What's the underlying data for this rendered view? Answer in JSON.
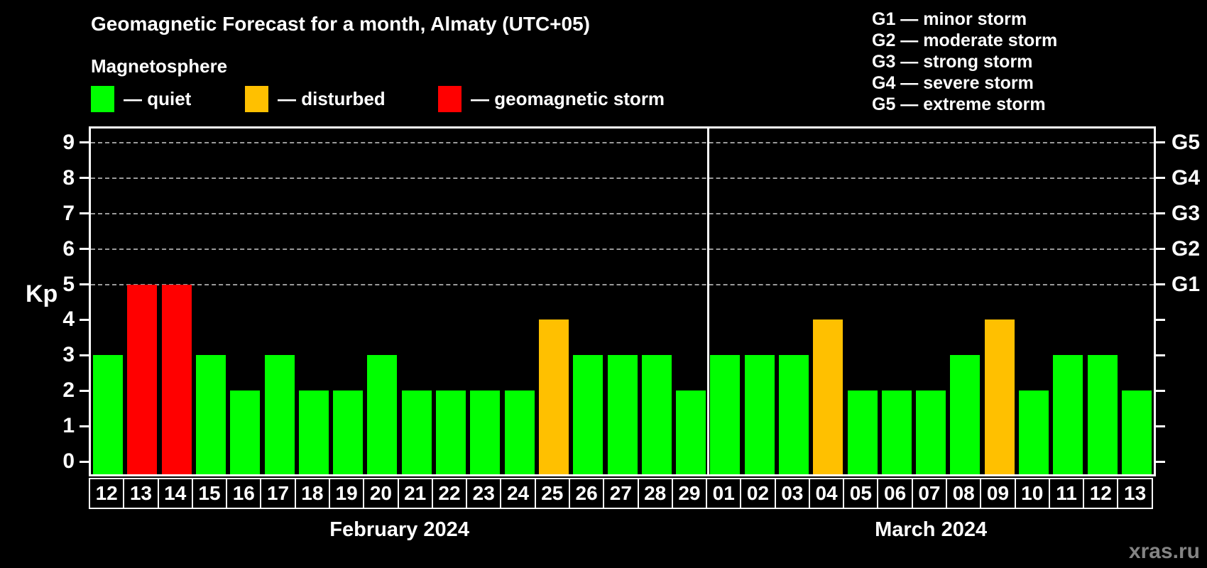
{
  "title": "Geomagnetic Forecast for a month, Almaty (UTC+05)",
  "subtitle": "Magnetosphere",
  "legend": {
    "items": [
      {
        "key": "quiet",
        "label": "— quiet",
        "color": "#00ff00"
      },
      {
        "key": "disturbed",
        "label": "— disturbed",
        "color": "#ffc000"
      },
      {
        "key": "storm",
        "label": "— geomagnetic storm",
        "color": "#ff0000"
      }
    ]
  },
  "g_scale_legend": [
    "G1 — minor storm",
    "G2 — moderate storm",
    "G3 — strong storm",
    "G4 — severe storm",
    "G5 — extreme storm"
  ],
  "watermark": "xras.ru",
  "chart_data": {
    "type": "bar",
    "ylabel": "Kp",
    "ylim": [
      0,
      9.4
    ],
    "yticks": [
      0,
      1,
      2,
      3,
      4,
      5,
      6,
      7,
      8,
      9
    ],
    "gridlines_at": [
      5,
      6,
      7,
      8,
      9
    ],
    "grid": true,
    "right_axis_labels": [
      {
        "label": "G1",
        "kp": 5
      },
      {
        "label": "G2",
        "kp": 6
      },
      {
        "label": "G3",
        "kp": 7
      },
      {
        "label": "G4",
        "kp": 8
      },
      {
        "label": "G5",
        "kp": 9
      }
    ],
    "colors": {
      "quiet": "#00ff00",
      "disturbed": "#ffc000",
      "storm": "#ff0000"
    },
    "groups": [
      {
        "month_label": "February 2024",
        "days": [
          "12",
          "13",
          "14",
          "15",
          "16",
          "17",
          "18",
          "19",
          "20",
          "21",
          "22",
          "23",
          "24",
          "25",
          "26",
          "27",
          "28",
          "29"
        ],
        "values": [
          3,
          5,
          5,
          3,
          2,
          3,
          2,
          2,
          3,
          2,
          2,
          2,
          2,
          4,
          3,
          3,
          3,
          2
        ],
        "status": [
          "quiet",
          "storm",
          "storm",
          "quiet",
          "quiet",
          "quiet",
          "quiet",
          "quiet",
          "quiet",
          "quiet",
          "quiet",
          "quiet",
          "quiet",
          "disturbed",
          "quiet",
          "quiet",
          "quiet",
          "quiet"
        ]
      },
      {
        "month_label": "March 2024",
        "days": [
          "01",
          "02",
          "03",
          "04",
          "05",
          "06",
          "07",
          "08",
          "09",
          "10",
          "11",
          "12",
          "13"
        ],
        "values": [
          3,
          3,
          3,
          4,
          2,
          2,
          2,
          3,
          4,
          2,
          3,
          3,
          2
        ],
        "status": [
          "quiet",
          "quiet",
          "quiet",
          "disturbed",
          "quiet",
          "quiet",
          "quiet",
          "quiet",
          "disturbed",
          "quiet",
          "quiet",
          "quiet",
          "quiet"
        ]
      }
    ]
  }
}
